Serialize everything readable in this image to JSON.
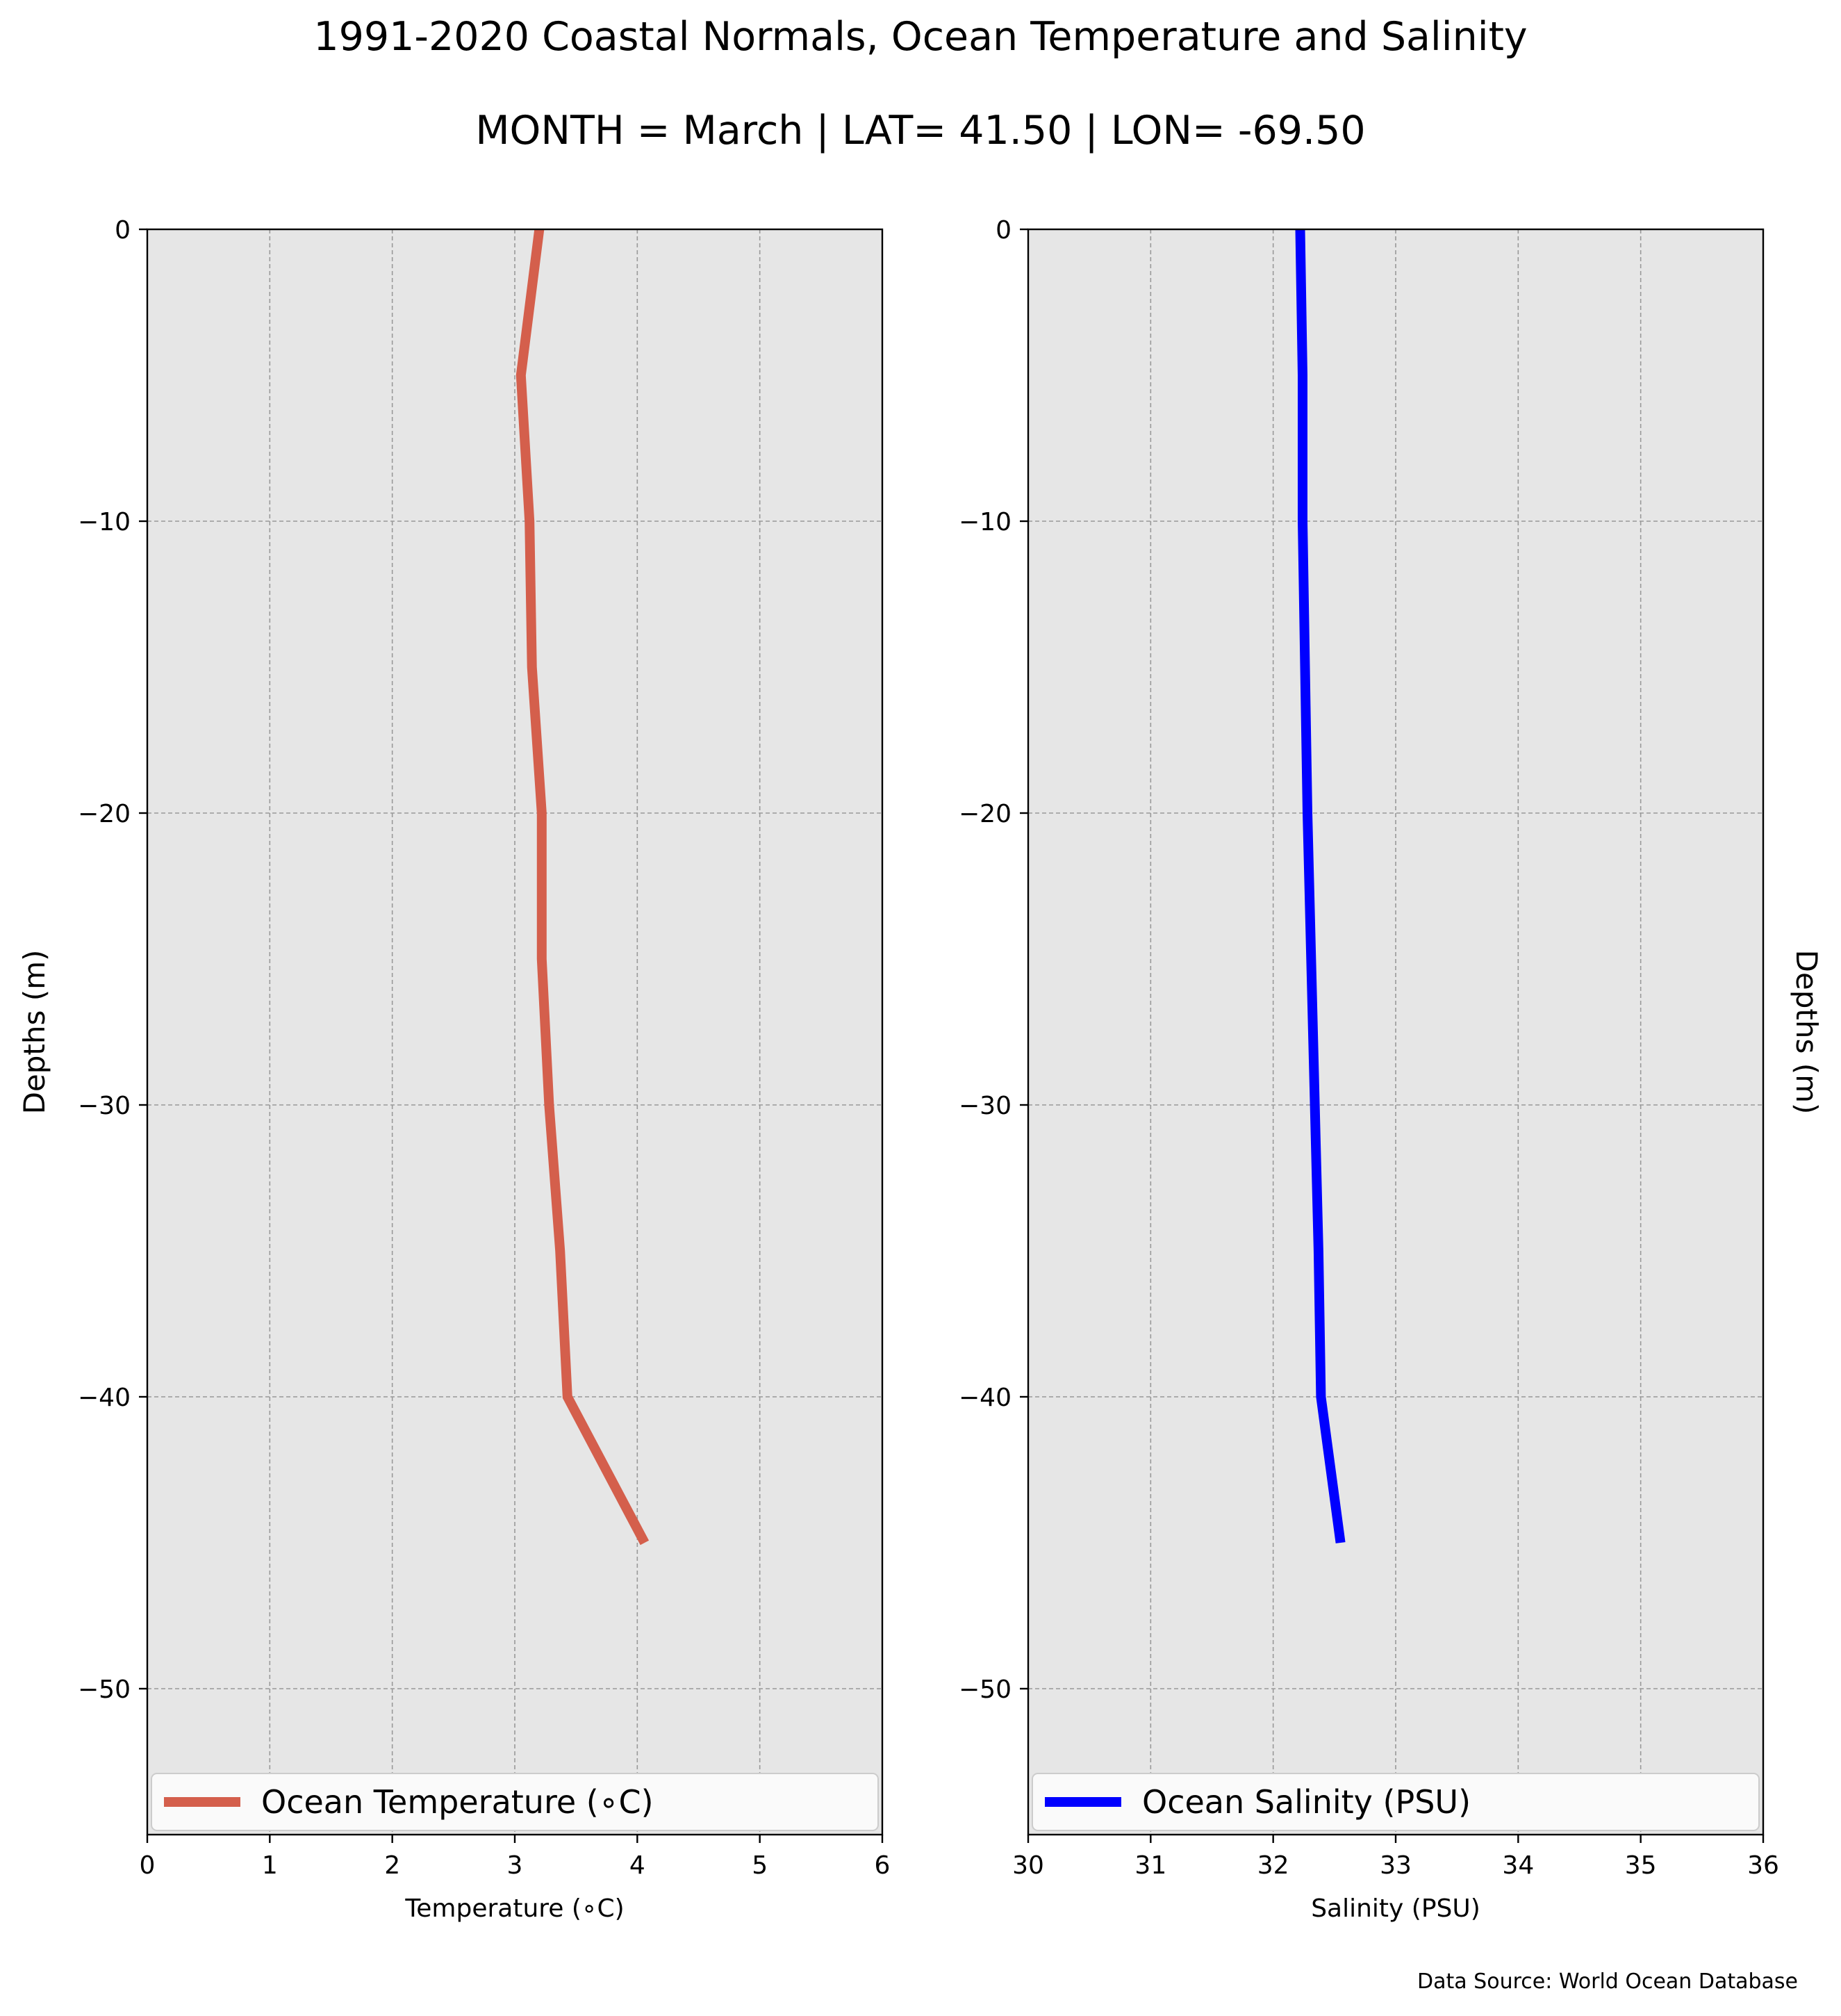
{
  "title": "1991-2020 Coastal Normals, Ocean Temperature and Salinity",
  "subtitle": "MONTH = March | LAT= 41.50 | LON= -69.50",
  "source_note": "Data Source: World Ocean Database",
  "colors": {
    "panel_bg": "#e6e6e6",
    "grid": "#999999",
    "temperature": "#d45f4c",
    "salinity": "#0000ff"
  },
  "chart_data": [
    {
      "type": "line",
      "title": "",
      "xlabel": "Temperature (∘C)",
      "ylabel": "Depths (m)",
      "ylabel_side": "left",
      "xlim": [
        0,
        6
      ],
      "ylim": [
        -55,
        0
      ],
      "xticks": [
        0,
        1,
        2,
        3,
        4,
        5,
        6
      ],
      "yticks": [
        0,
        -10,
        -20,
        -30,
        -40,
        -50
      ],
      "grid": true,
      "legend_position": "lower center",
      "series": [
        {
          "name": "Ocean Temperature (∘C)",
          "color": "#d45f4c",
          "x": [
            3.2,
            3.05,
            3.12,
            3.14,
            3.22,
            3.22,
            3.28,
            3.37,
            3.43,
            4.06
          ],
          "y": [
            0,
            -5,
            -10,
            -15,
            -20,
            -25,
            -30,
            -35,
            -40,
            -45
          ]
        }
      ]
    },
    {
      "type": "line",
      "title": "",
      "xlabel": "Salinity (PSU)",
      "ylabel": "Depths (m)",
      "ylabel_side": "right",
      "xlim": [
        30,
        36
      ],
      "ylim": [
        -55,
        0
      ],
      "xticks": [
        30,
        31,
        32,
        33,
        34,
        35,
        36
      ],
      "yticks": [
        0,
        -10,
        -20,
        -30,
        -40,
        -50
      ],
      "grid": true,
      "legend_position": "lower center",
      "series": [
        {
          "name": "Ocean Salinity (PSU)",
          "color": "#0000ff",
          "x": [
            32.22,
            32.24,
            32.24,
            32.26,
            32.28,
            32.31,
            32.34,
            32.37,
            32.39,
            32.55
          ],
          "y": [
            0,
            -5,
            -10,
            -15,
            -20,
            -25,
            -30,
            -35,
            -40,
            -45
          ]
        }
      ]
    }
  ]
}
